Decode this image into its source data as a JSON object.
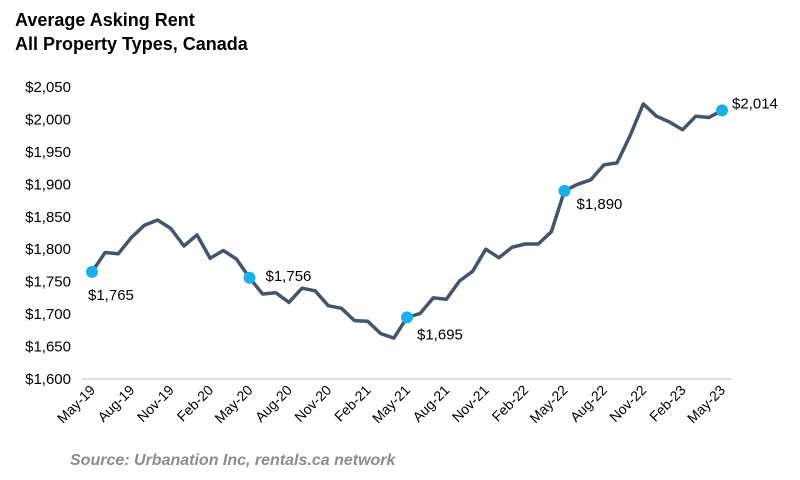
{
  "chart_data": {
    "type": "line",
    "title": "Average Asking Rent",
    "subtitle": "All Property Types, Canada",
    "source": "Source: Urbanation Inc, rentals.ca network",
    "ylim": [
      1600,
      2050
    ],
    "yticks": [
      1600,
      1650,
      1700,
      1750,
      1800,
      1850,
      1900,
      1950,
      2000,
      2050
    ],
    "ytick_labels": [
      "$1,600",
      "$1,650",
      "$1,700",
      "$1,750",
      "$1,800",
      "$1,850",
      "$1,900",
      "$1,950",
      "$2,000",
      "$2,050"
    ],
    "xtick_labels": [
      "May-19",
      "Aug-19",
      "Nov-19",
      "Feb-20",
      "May-20",
      "Aug-20",
      "Nov-20",
      "Feb-21",
      "May-21",
      "Aug-21",
      "Nov-21",
      "Feb-22",
      "May-22",
      "Aug-22",
      "Nov-22",
      "Feb-23",
      "May-23"
    ],
    "x": [
      "May-19",
      "Jun-19",
      "Jul-19",
      "Aug-19",
      "Sep-19",
      "Oct-19",
      "Nov-19",
      "Dec-19",
      "Jan-20",
      "Feb-20",
      "Mar-20",
      "Apr-20",
      "May-20",
      "Jun-20",
      "Jul-20",
      "Aug-20",
      "Sep-20",
      "Oct-20",
      "Nov-20",
      "Dec-20",
      "Jan-21",
      "Feb-21",
      "Mar-21",
      "Apr-21",
      "May-21",
      "Jun-21",
      "Jul-21",
      "Aug-21",
      "Sep-21",
      "Oct-21",
      "Nov-21",
      "Dec-21",
      "Jan-22",
      "Feb-22",
      "Mar-22",
      "Apr-22",
      "May-22",
      "Jun-22",
      "Jul-22",
      "Aug-22",
      "Sep-22",
      "Oct-22",
      "Nov-22",
      "Dec-22",
      "Jan-23",
      "Feb-23",
      "Mar-23",
      "Apr-23",
      "May-23"
    ],
    "series": [
      {
        "values": [
          1765,
          1795,
          1793,
          1818,
          1837,
          1845,
          1832,
          1805,
          1822,
          1786,
          1798,
          1785,
          1756,
          1731,
          1733,
          1718,
          1740,
          1736,
          1713,
          1709,
          1690,
          1689,
          1670,
          1663,
          1695,
          1701,
          1725,
          1723,
          1751,
          1766,
          1800,
          1787,
          1803,
          1808,
          1808,
          1827,
          1890,
          1900,
          1907,
          1930,
          1933,
          1975,
          2024,
          2005,
          1996,
          1984,
          2005,
          2003,
          2014
        ],
        "color": "#44546a"
      }
    ],
    "highlights": [
      {
        "index": 0,
        "label": "$1,765"
      },
      {
        "index": 12,
        "label": "$1,756"
      },
      {
        "index": 24,
        "label": "$1,695"
      },
      {
        "index": 36,
        "label": "$1,890"
      },
      {
        "index": 48,
        "label": "$2,014"
      }
    ],
    "marker_color": "#1ab0ec",
    "axis_color": "#bfbfbf",
    "grid": false,
    "legend": "none"
  }
}
